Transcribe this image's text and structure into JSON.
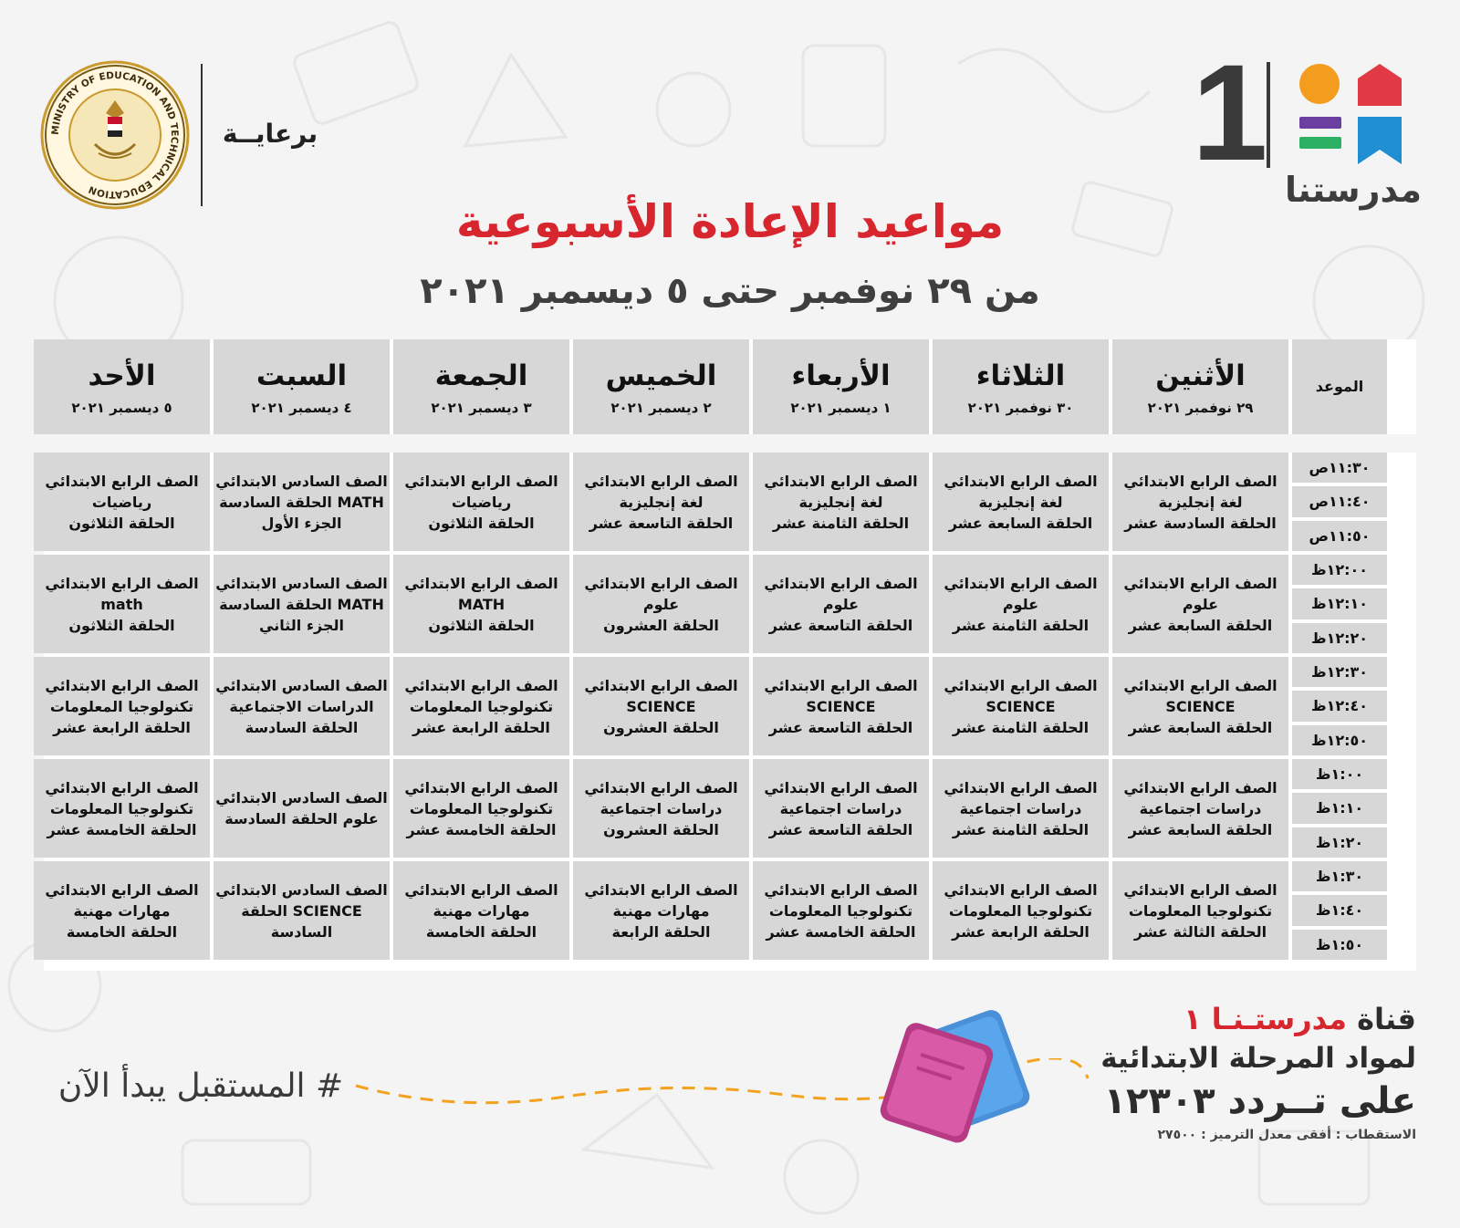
{
  "brand": {
    "name": "مدرستنا",
    "number": "1",
    "colors": {
      "orange": "#f39c1e",
      "red": "#e23a45",
      "purple": "#6b3fa0",
      "green": "#2cb063",
      "blue": "#1f8fd1"
    }
  },
  "sponsor": {
    "label": "برعايــة",
    "seal_text": "MINISTRY OF EDUCATION AND TECHNICAL EDUCATION"
  },
  "title": "مواعيد الإعادة الأسبوعية",
  "subtitle": "من ٢٩ نوفمبر حتى ٥ ديسمبر ٢٠٢١",
  "table": {
    "time_header": "الموعد",
    "days": [
      {
        "day": "الأثنين",
        "date": "٢٩ نوفمبر ٢٠٢١"
      },
      {
        "day": "الثلاثاء",
        "date": "٣٠ نوفمبر ٢٠٢١"
      },
      {
        "day": "الأربعاء",
        "date": "١ ديسمبر ٢٠٢١"
      },
      {
        "day": "الخميس",
        "date": "٢ ديسمبر ٢٠٢١"
      },
      {
        "day": "الجمعة",
        "date": "٣ ديسمبر ٢٠٢١"
      },
      {
        "day": "السبت",
        "date": "٤ ديسمبر ٢٠٢١"
      },
      {
        "day": "الأحد",
        "date": "٥ ديسمبر ٢٠٢١"
      }
    ],
    "times": [
      "١١:٣٠ص",
      "١١:٤٠ص",
      "١١:٥٠ص",
      "١٢:٠٠ظ",
      "١٢:١٠ظ",
      "١٢:٢٠ظ",
      "١٢:٣٠ظ",
      "١٢:٤٠ظ",
      "١٢:٥٠ظ",
      "١:٠٠ظ",
      "١:١٠ظ",
      "١:٢٠ظ",
      "١:٣٠ظ",
      "١:٤٠ظ",
      "١:٥٠ظ"
    ],
    "rows": [
      [
        [
          "الصف الرابع الابتدائي",
          "لغة إنجليزية",
          "الحلقة السادسة عشر"
        ],
        [
          "الصف الرابع الابتدائي",
          "لغة إنجليزية",
          "الحلقة السابعة عشر"
        ],
        [
          "الصف الرابع الابتدائي",
          "لغة إنجليزية",
          "الحلقة الثامنة عشر"
        ],
        [
          "الصف الرابع الابتدائي",
          "لغة إنجليزية",
          "الحلقة التاسعة عشر"
        ],
        [
          "الصف الرابع الابتدائي",
          "رياضيات",
          "الحلقة الثلاثون"
        ],
        [
          "الصف السادس الابتدائي",
          "MATH الحلقة السادسة",
          "الجزء الأول"
        ],
        [
          "الصف الرابع الابتدائي",
          "رياضيات",
          "الحلقة الثلاثون"
        ]
      ],
      [
        [
          "الصف الرابع الابتدائي",
          "علوم",
          "الحلقة السابعة عشر"
        ],
        [
          "الصف الرابع الابتدائي",
          "علوم",
          "الحلقة الثامنة عشر"
        ],
        [
          "الصف الرابع الابتدائي",
          "علوم",
          "الحلقة التاسعة عشر"
        ],
        [
          "الصف الرابع الابتدائي",
          "علوم",
          "الحلقة العشرون"
        ],
        [
          "الصف الرابع الابتدائي",
          "MATH",
          "الحلقة الثلاثون"
        ],
        [
          "الصف السادس الابتدائي",
          "MATH الحلقة السادسة",
          "الجزء الثاني"
        ],
        [
          "الصف الرابع الابتدائي",
          "math",
          "الحلقة الثلاثون"
        ]
      ],
      [
        [
          "الصف الرابع الابتدائي",
          "SCIENCE",
          "الحلقة السابعة عشر"
        ],
        [
          "الصف الرابع الابتدائي",
          "SCIENCE",
          "الحلقة الثامنة عشر"
        ],
        [
          "الصف الرابع الابتدائي",
          "SCIENCE",
          "الحلقة التاسعة عشر"
        ],
        [
          "الصف الرابع الابتدائي",
          "SCIENCE",
          "الحلقة العشرون"
        ],
        [
          "الصف الرابع الابتدائي",
          "تكنولوجيا المعلومات",
          "الحلقة الرابعة عشر"
        ],
        [
          "الصف السادس الابتدائي",
          "الدراسات الاجتماعية",
          "الحلقة السادسة"
        ],
        [
          "الصف الرابع الابتدائي",
          "تكنولوجيا المعلومات",
          "الحلقة الرابعة عشر"
        ]
      ],
      [
        [
          "الصف الرابع الابتدائي",
          "دراسات اجتماعية",
          "الحلقة السابعة عشر"
        ],
        [
          "الصف الرابع الابتدائي",
          "دراسات اجتماعية",
          "الحلقة الثامنة عشر"
        ],
        [
          "الصف الرابع الابتدائي",
          "دراسات اجتماعية",
          "الحلقة التاسعة عشر"
        ],
        [
          "الصف الرابع الابتدائي",
          "دراسات اجتماعية",
          "الحلقة العشرون"
        ],
        [
          "الصف الرابع الابتدائي",
          "تكنولوجيا المعلومات",
          "الحلقة الخامسة عشر"
        ],
        [
          "الصف السادس الابتدائي",
          "علوم الحلقة السادسة"
        ],
        [
          "الصف الرابع الابتدائي",
          "تكنولوجيا المعلومات",
          "الحلقة الخامسة عشر"
        ]
      ],
      [
        [
          "الصف الرابع الابتدائي",
          "تكنولوجيا المعلومات",
          "الحلقة الثالثة عشر"
        ],
        [
          "الصف الرابع الابتدائي",
          "تكنولوجيا المعلومات",
          "الحلقة الرابعة عشر"
        ],
        [
          "الصف الرابع الابتدائي",
          "تكنولوجيا المعلومات",
          "الحلقة الخامسة عشر"
        ],
        [
          "الصف الرابع الابتدائي",
          "مهارات مهنية",
          "الحلقة الرابعة"
        ],
        [
          "الصف الرابع الابتدائي",
          "مهارات مهنية",
          "الحلقة الخامسة"
        ],
        [
          "الصف السادس الابتدائي",
          "SCIENCE الحلقة",
          "السادسة"
        ],
        [
          "الصف الرابع الابتدائي",
          "مهارات مهنية",
          "الحلقة الخامسة"
        ]
      ]
    ]
  },
  "footer": {
    "channel_prefix": "قناة ",
    "channel_name": "مدرستـنـا ١",
    "line2": "لمواد المرحلة الابتدائية",
    "line3": "على تــردد ١٢٣٠٣",
    "line4": "الاستقطاب : أفقى معدل الترميز : ٢٧٥٠٠",
    "hashtag": "# المستقبل يبدأ الآن"
  }
}
